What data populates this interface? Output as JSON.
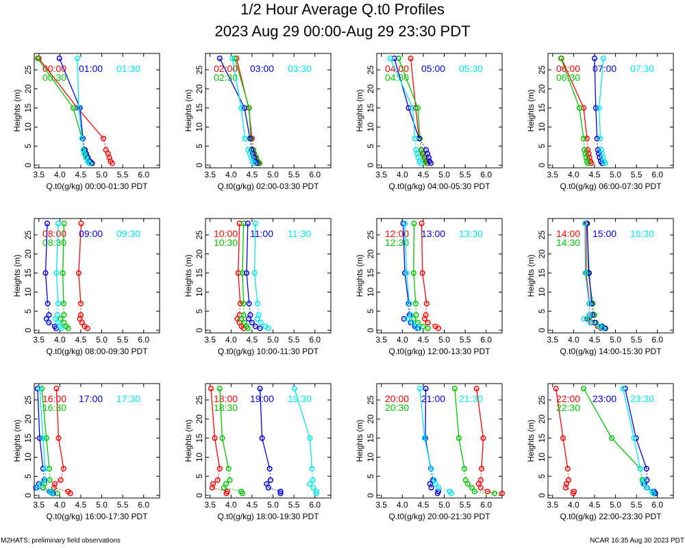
{
  "title": "1/2 Hour Average Q.t0 Profiles",
  "subtitle": "2023 Aug 29 00:00-Aug 29 23:30 PDT",
  "footer_left": "M2HATS: preliminary field observations",
  "footer_right": "NCAR 16:35 Aug 30 2023 PDT",
  "colors": {
    "red": "#ff0000",
    "green": "#00c400",
    "blue": "#0000dd",
    "cyan": "#00e6f2",
    "axes": "#000000"
  },
  "chart_data": [
    {
      "type": "line",
      "xlabel": "Q.t0(g/kg) 00:00-01:30 PDT",
      "ylabel": "Heights (m)",
      "xlim": [
        3.39,
        6.38
      ],
      "ylim": [
        -0.7,
        29.3
      ],
      "xticks": [
        "3.5",
        "4.0",
        "4.5",
        "5.0",
        "5.5",
        "6.0"
      ],
      "yticks": [
        "0",
        "5",
        "10",
        "15",
        "20",
        "25"
      ],
      "heights": [
        0.5,
        1,
        2,
        3,
        4,
        7,
        15,
        28
      ],
      "series": [
        {
          "name": "00:00",
          "color": "#ff0000",
          "values": [
            5.25,
            5.21,
            5.18,
            5.15,
            5.1,
            5.04,
            4.42,
            3.5
          ]
        },
        {
          "name": "00:30",
          "color": "#00c400",
          "values": [
            4.75,
            4.7,
            4.65,
            4.61,
            4.58,
            4.53,
            4.32,
            3.47
          ]
        },
        {
          "name": "01:00",
          "color": "#0000dd",
          "values": [
            4.77,
            4.72,
            4.67,
            4.63,
            4.6,
            4.55,
            4.48,
            3.99
          ]
        },
        {
          "name": "01:30",
          "color": "#00e6f2",
          "values": [
            4.7,
            4.66,
            4.62,
            4.58,
            4.56,
            4.53,
            4.45,
            4.42
          ]
        }
      ]
    },
    {
      "type": "line",
      "xlabel": "Q.t0(g/kg) 02:00-03:30 PDT",
      "ylabel": "Heights (m)",
      "xlim": [
        3.39,
        6.38
      ],
      "ylim": [
        -0.7,
        29.3
      ],
      "xticks": [
        "3.5",
        "4.0",
        "4.5",
        "5.0",
        "5.5",
        "6.0"
      ],
      "yticks": [
        "0",
        "5",
        "10",
        "15",
        "20",
        "25"
      ],
      "heights": [
        0.5,
        1,
        2,
        3,
        4,
        7,
        15,
        28
      ],
      "series": [
        {
          "name": "02:00",
          "color": "#ff0000",
          "values": [
            4.66,
            4.62,
            4.58,
            4.55,
            4.53,
            4.5,
            4.42,
            4.13
          ]
        },
        {
          "name": "02:30",
          "color": "#00c400",
          "values": [
            4.68,
            4.64,
            4.6,
            4.56,
            4.52,
            4.47,
            4.43,
            4.09
          ]
        },
        {
          "name": "03:00",
          "color": "#0000dd",
          "values": [
            4.62,
            4.58,
            4.55,
            4.52,
            4.49,
            4.45,
            4.32,
            3.73
          ]
        },
        {
          "name": "03:30",
          "color": "#00e6f2",
          "values": [
            4.55,
            4.51,
            4.48,
            4.45,
            4.41,
            4.33,
            4.24,
            4.03
          ]
        }
      ]
    },
    {
      "type": "line",
      "xlabel": "Q.t0(g/kg) 04:00-05:30 PDT",
      "ylabel": "Heights (m)",
      "xlim": [
        3.39,
        6.38
      ],
      "ylim": [
        -0.7,
        29.3
      ],
      "xticks": [
        "3.5",
        "4.0",
        "4.5",
        "5.0",
        "5.5",
        "6.0"
      ],
      "yticks": [
        "0",
        "5",
        "10",
        "15",
        "20",
        "25"
      ],
      "heights": [
        0.5,
        1,
        2,
        3,
        4,
        7,
        15,
        28
      ],
      "series": [
        {
          "name": "04:00",
          "color": "#ff0000",
          "values": [
            4.6,
            4.57,
            4.54,
            4.5,
            4.46,
            4.4,
            4.32,
            4.2
          ]
        },
        {
          "name": "04:30",
          "color": "#00c400",
          "values": [
            4.58,
            4.55,
            4.52,
            4.48,
            4.45,
            4.42,
            4.37,
            3.91
          ]
        },
        {
          "name": "05:00",
          "color": "#0000dd",
          "values": [
            4.68,
            4.65,
            4.63,
            4.6,
            4.57,
            4.4,
            4.15,
            3.81
          ]
        },
        {
          "name": "05:30",
          "color": "#00e6f2",
          "values": [
            4.44,
            4.41,
            4.38,
            4.35,
            4.33,
            4.3,
            4.25,
            3.71
          ]
        }
      ]
    },
    {
      "type": "line",
      "xlabel": "Q.t0(g/kg) 06:00-07:30 PDT",
      "ylabel": "Heights (m)",
      "xlim": [
        3.39,
        6.38
      ],
      "ylim": [
        -0.7,
        29.3
      ],
      "xticks": [
        "3.5",
        "4.0",
        "4.5",
        "5.0",
        "5.5",
        "6.0"
      ],
      "yticks": [
        "0",
        "5",
        "10",
        "15",
        "20",
        "25"
      ],
      "heights": [
        0.5,
        1,
        2,
        3,
        4,
        7,
        15,
        28
      ],
      "series": [
        {
          "name": "06:00",
          "color": "#ff0000",
          "values": [
            4.42,
            4.4,
            4.38,
            4.36,
            4.34,
            4.32,
            4.24,
            3.71
          ]
        },
        {
          "name": "06:30",
          "color": "#00c400",
          "values": [
            4.34,
            4.32,
            4.3,
            4.28,
            4.26,
            4.24,
            4.14,
            3.7
          ]
        },
        {
          "name": "07:00",
          "color": "#0000dd",
          "values": [
            4.68,
            4.65,
            4.62,
            4.6,
            4.58,
            4.56,
            4.53,
            4.5
          ]
        },
        {
          "name": "07:30",
          "color": "#00e6f2",
          "values": [
            4.76,
            4.73,
            4.7,
            4.68,
            4.66,
            4.64,
            4.61,
            4.71
          ]
        }
      ]
    },
    {
      "type": "line",
      "xlabel": "Q.t0(g/kg) 08:00-09:30 PDT",
      "ylabel": "Heights (m)",
      "xlim": [
        3.39,
        6.38
      ],
      "ylim": [
        -0.7,
        29.3
      ],
      "xticks": [
        "3.5",
        "4.0",
        "4.5",
        "5.0",
        "5.5",
        "6.0"
      ],
      "yticks": [
        "0",
        "5",
        "10",
        "15",
        "20",
        "25"
      ],
      "heights": [
        0.5,
        1,
        2,
        3,
        4,
        7,
        15,
        28
      ],
      "series": [
        {
          "name": "08:00",
          "color": "#ff0000",
          "values": [
            4.66,
            4.59,
            4.53,
            4.48,
            4.5,
            4.5,
            4.45,
            4.51
          ]
        },
        {
          "name": "08:30",
          "color": "#00c400",
          "values": [
            4.2,
            4.15,
            4.1,
            4.02,
            4.1,
            4.09,
            4.07,
            4.1
          ]
        },
        {
          "name": "09:00",
          "color": "#0000dd",
          "values": [
            3.91,
            3.88,
            3.74,
            3.68,
            3.74,
            3.71,
            3.66,
            3.7
          ]
        },
        {
          "name": "09:30",
          "color": "#00e6f2",
          "values": [
            4.04,
            4.0,
            3.96,
            3.89,
            3.94,
            3.96,
            3.92,
            3.96
          ]
        }
      ]
    },
    {
      "type": "line",
      "xlabel": "Q.t0(g/kg) 10:00-11:30 PDT",
      "ylabel": "Heights (m)",
      "xlim": [
        3.39,
        6.38
      ],
      "ylim": [
        -0.7,
        29.3
      ],
      "xticks": [
        "3.5",
        "4.0",
        "4.5",
        "5.0",
        "5.5",
        "6.0"
      ],
      "yticks": [
        "0",
        "5",
        "10",
        "15",
        "20",
        "25"
      ],
      "heights": [
        0.5,
        1,
        2,
        3,
        4,
        7,
        15,
        28
      ],
      "series": [
        {
          "name": "10:00",
          "color": "#ff0000",
          "values": [
            4.3,
            4.25,
            4.2,
            4.15,
            4.2,
            4.22,
            4.17,
            4.2
          ]
        },
        {
          "name": "10:30",
          "color": "#00c400",
          "values": [
            4.4,
            4.37,
            4.32,
            4.24,
            4.3,
            4.3,
            4.27,
            4.3
          ]
        },
        {
          "name": "11:00",
          "color": "#0000dd",
          "values": [
            4.69,
            4.58,
            4.5,
            4.42,
            4.46,
            4.43,
            4.37,
            4.4
          ]
        },
        {
          "name": "11:30",
          "color": "#00e6f2",
          "values": [
            4.89,
            4.82,
            4.71,
            4.63,
            4.66,
            4.63,
            4.56,
            4.58
          ]
        }
      ]
    },
    {
      "type": "line",
      "xlabel": "Q.t0(g/kg) 12:00-13:30 PDT",
      "ylabel": "Heights (m)",
      "xlim": [
        3.39,
        6.38
      ],
      "ylim": [
        -0.7,
        29.3
      ],
      "xticks": [
        "3.5",
        "4.0",
        "4.5",
        "5.0",
        "5.5",
        "6.0"
      ],
      "yticks": [
        "0",
        "5",
        "10",
        "15",
        "20",
        "25"
      ],
      "heights": [
        0.5,
        1,
        2,
        3,
        4,
        7,
        15,
        28
      ],
      "series": [
        {
          "name": "12:00",
          "color": "#ff0000",
          "values": [
            4.86,
            4.79,
            4.61,
            4.53,
            4.56,
            4.58,
            4.48,
            4.46
          ]
        },
        {
          "name": "12:30",
          "color": "#00c400",
          "values": [
            4.61,
            4.5,
            4.37,
            4.27,
            4.33,
            4.32,
            4.27,
            4.28
          ]
        },
        {
          "name": "13:00",
          "color": "#0000dd",
          "values": [
            4.37,
            4.3,
            4.2,
            4.04,
            4.17,
            4.15,
            4.06,
            4.02
          ]
        },
        {
          "name": "13:30",
          "color": "#00e6f2",
          "values": [
            4.4,
            4.33,
            4.24,
            4.12,
            4.2,
            4.17,
            4.1,
            4.06
          ]
        }
      ]
    },
    {
      "type": "line",
      "xlabel": "Q.t0(g/kg) 14:00-15:30 PDT",
      "ylabel": "Heights (m)",
      "xlim": [
        3.39,
        6.38
      ],
      "ylim": [
        -0.7,
        29.3
      ],
      "xticks": [
        "3.5",
        "4.0",
        "4.5",
        "5.0",
        "5.5",
        "6.0"
      ],
      "yticks": [
        "0",
        "5",
        "10",
        "15",
        "20",
        "25"
      ],
      "heights": [
        0.5,
        1,
        2,
        3,
        4,
        7,
        15,
        28
      ],
      "series": [
        {
          "name": "14:00",
          "color": "#ff0000",
          "values": [
            4.66,
            4.58,
            4.43,
            4.32,
            4.38,
            4.38,
            4.3,
            4.3
          ]
        },
        {
          "name": "14:30",
          "color": "#00c400",
          "values": [
            4.73,
            4.66,
            4.53,
            4.37,
            4.5,
            4.46,
            4.35,
            4.33
          ]
        },
        {
          "name": "15:00",
          "color": "#0000dd",
          "values": [
            4.76,
            4.68,
            4.51,
            4.33,
            4.46,
            4.43,
            4.37,
            4.32
          ]
        },
        {
          "name": "15:30",
          "color": "#00e6f2",
          "values": [
            4.69,
            4.61,
            4.4,
            4.25,
            4.37,
            4.37,
            4.28,
            4.27
          ]
        }
      ]
    },
    {
      "type": "line",
      "xlabel": "Q.t0(g/kg) 16:00-17:30 PDT",
      "ylabel": "Heights (m)",
      "xlim": [
        3.39,
        6.38
      ],
      "ylim": [
        -0.7,
        29.3
      ],
      "xticks": [
        "3.5",
        "4.0",
        "4.5",
        "5.0",
        "5.5",
        "6.0"
      ],
      "yticks": [
        "0",
        "5",
        "10",
        "15",
        "20",
        "25"
      ],
      "heights": [
        0.5,
        1,
        2,
        3,
        4,
        7,
        15,
        28
      ],
      "series": [
        {
          "name": "16:00",
          "color": "#ff0000",
          "values": [
            4.25,
            4.2,
            3.86,
            3.88,
            4.02,
            4.09,
            3.97,
            3.92
          ]
        },
        {
          "name": "16:30",
          "color": "#00c400",
          "values": [
            3.94,
            3.81,
            3.6,
            3.63,
            3.76,
            3.75,
            3.68,
            3.57
          ]
        },
        {
          "name": "17:00",
          "color": "#0000dd",
          "values": [
            3.84,
            3.76,
            3.43,
            3.5,
            3.63,
            3.6,
            3.52,
            3.47
          ]
        },
        {
          "name": "17:30",
          "color": "#00e6f2",
          "values": [
            3.81,
            3.78,
            3.47,
            3.55,
            3.65,
            3.65,
            3.6,
            3.52
          ]
        }
      ]
    },
    {
      "type": "line",
      "xlabel": "Q.t0(g/kg) 18:00-19:30 PDT",
      "ylabel": "Heights (m)",
      "xlim": [
        3.39,
        6.38
      ],
      "ylim": [
        -0.7,
        29.3
      ],
      "xticks": [
        "3.5",
        "4.0",
        "4.5",
        "5.0",
        "5.5",
        "6.0"
      ],
      "yticks": [
        "0",
        "5",
        "10",
        "15",
        "20",
        "25"
      ],
      "heights": [
        0.5,
        1,
        2,
        3,
        4,
        7,
        15,
        28
      ],
      "series": [
        {
          "name": "18:00",
          "color": "#ff0000",
          "values": [
            3.89,
            3.91,
            3.55,
            3.57,
            3.68,
            3.73,
            3.61,
            3.52
          ]
        },
        {
          "name": "18:30",
          "color": "#00c400",
          "values": [
            4.27,
            4.24,
            3.83,
            3.88,
            3.97,
            3.94,
            3.79,
            3.73
          ]
        },
        {
          "name": "19:00",
          "color": "#0000dd",
          "values": [
            5.18,
            5.18,
            4.89,
            4.85,
            4.94,
            4.92,
            4.74,
            4.69
          ]
        },
        {
          "name": "19:30",
          "color": "#00e6f2",
          "values": [
            6.03,
            6.04,
            5.96,
            5.88,
            5.95,
            5.93,
            5.88,
            5.51
          ]
        }
      ]
    },
    {
      "type": "line",
      "xlabel": "Q.t0(g/kg) 20:00-21:30 PDT",
      "ylabel": "Heights (m)",
      "xlim": [
        3.39,
        6.38
      ],
      "ylim": [
        -0.7,
        29.3
      ],
      "xticks": [
        "3.5",
        "4.0",
        "4.5",
        "5.0",
        "5.5",
        "6.0"
      ],
      "yticks": [
        "0",
        "5",
        "10",
        "15",
        "20",
        "25"
      ],
      "heights": [
        0.5,
        1,
        2,
        3,
        4,
        7,
        15,
        28
      ],
      "series": [
        {
          "name": "20:00",
          "color": "#ff0000",
          "values": [
            6.38,
            6.03,
            5.87,
            5.82,
            5.87,
            5.89,
            5.93,
            5.77
          ]
        },
        {
          "name": "20:30",
          "color": "#00c400",
          "values": [
            6.2,
            5.72,
            5.66,
            5.56,
            5.51,
            5.48,
            5.35,
            5.25
          ]
        },
        {
          "name": "21:00",
          "color": "#0000dd",
          "values": [
            4.84,
            4.86,
            4.69,
            4.66,
            4.73,
            4.68,
            4.55,
            4.56
          ]
        },
        {
          "name": "21:30",
          "color": "#00e6f2",
          "values": [
            5.17,
            5.13,
            4.86,
            4.79,
            4.76,
            4.69,
            4.53,
            4.42
          ]
        }
      ]
    },
    {
      "type": "line",
      "xlabel": "Q.t0(g/kg) 22:00-23:30 PDT",
      "ylabel": "Heights (m)",
      "xlim": [
        3.39,
        6.38
      ],
      "ylim": [
        -0.7,
        29.3
      ],
      "xticks": [
        "3.5",
        "4.0",
        "4.5",
        "5.0",
        "5.5",
        "6.0"
      ],
      "yticks": [
        "0",
        "5",
        "10",
        "15",
        "20",
        "25"
      ],
      "heights": [
        0.5,
        1,
        2,
        3,
        4,
        7,
        15,
        28
      ],
      "series": [
        {
          "name": "22:00",
          "color": "#ff0000",
          "values": [
            3.99,
            4.01,
            3.81,
            3.83,
            3.88,
            3.86,
            3.75,
            3.58
          ]
        },
        {
          "name": "22:30",
          "color": "#00c400",
          "values": [
            5.93,
            5.87,
            5.75,
            5.69,
            5.64,
            5.59,
            4.91,
            4.24
          ]
        },
        {
          "name": "23:00",
          "color": "#0000dd",
          "values": [
            5.95,
            5.92,
            5.75,
            5.69,
            5.75,
            5.74,
            5.49,
            5.23
          ]
        },
        {
          "name": "23:30",
          "color": "#00e6f2",
          "values": [
            5.9,
            5.87,
            5.74,
            5.66,
            5.67,
            5.59,
            5.44,
            5.18
          ]
        }
      ]
    }
  ]
}
